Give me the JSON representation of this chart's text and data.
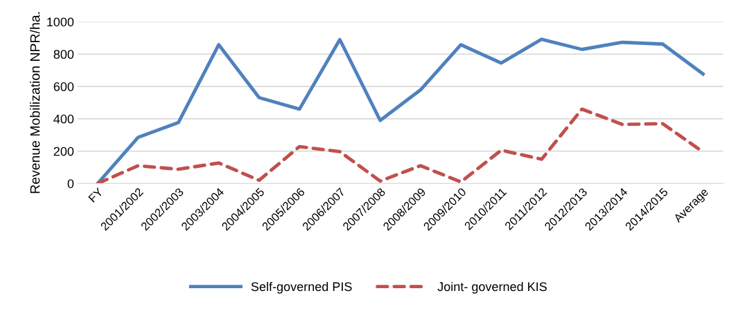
{
  "chart_data": {
    "type": "line",
    "ylabel": "Revenue Mobilization NPR/ha.",
    "categories": [
      "FY",
      "2001/2002",
      "2002/2003",
      "2003/2004",
      "2004/2005",
      "2005/2006",
      "2006/2007",
      "2007/2008",
      "2008/2009",
      "2009/2010",
      "2010/2011",
      "2011/2012",
      "2012/2013",
      "2013/2014",
      "2014/2015",
      "Average"
    ],
    "series": [
      {
        "name": "Self-governed PIS",
        "color": "#4f81bd",
        "line_style": "solid",
        "values": [
          0,
          285,
          377,
          858,
          531,
          460,
          890,
          390,
          579,
          858,
          745,
          892,
          829,
          873,
          862,
          677
        ]
      },
      {
        "name": "Joint- governed KIS",
        "color": "#c0504d",
        "line_style": "dashed",
        "values": [
          0,
          110,
          88,
          127,
          20,
          228,
          197,
          15,
          110,
          10,
          206,
          150,
          460,
          365,
          370,
          195
        ]
      }
    ],
    "ylim": [
      0,
      1000
    ],
    "yticks": [
      0,
      200,
      400,
      600,
      800,
      1000
    ],
    "grid": "y",
    "legend": "bottom"
  }
}
